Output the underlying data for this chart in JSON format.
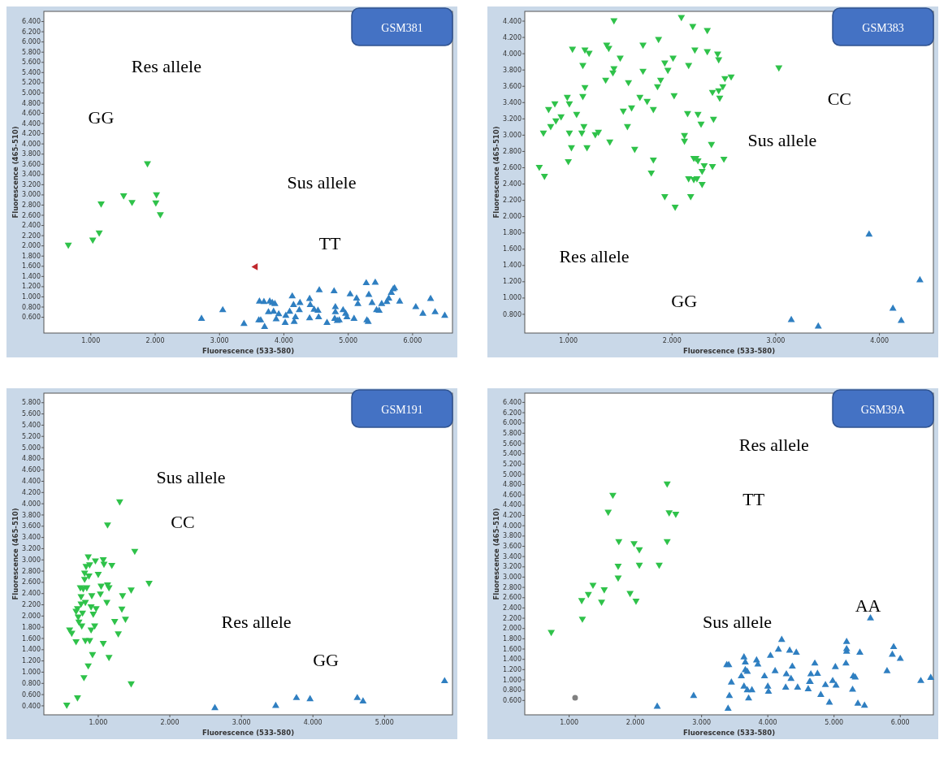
{
  "chart_data": [
    {
      "type": "scatter",
      "title": "GSM381",
      "xlabel": "Fluorescence (533-580)",
      "ylabel": "Fluorescence (465-510)",
      "xlim": [
        0.27,
        6.62
      ],
      "ylim": [
        0.29,
        6.6
      ],
      "xticks": [
        {
          "value": 1,
          "label": "1.000"
        },
        {
          "value": 2,
          "label": "2.000"
        },
        {
          "value": 3,
          "label": "3.000"
        },
        {
          "value": 4,
          "label": "4.000"
        },
        {
          "value": 5,
          "label": "5.000"
        },
        {
          "value": 6,
          "label": "6.000"
        }
      ],
      "yticks": [
        {
          "value": 0.6,
          "label": "0.600"
        },
        {
          "value": 0.8,
          "label": "0.800"
        },
        {
          "value": 1,
          "label": "1.000"
        },
        {
          "value": 1.2,
          "label": "1.200"
        },
        {
          "value": 1.4,
          "label": "1.400"
        },
        {
          "value": 1.6,
          "label": "1.600"
        },
        {
          "value": 1.8,
          "label": "1.800"
        },
        {
          "value": 2,
          "label": "2.000"
        },
        {
          "value": 2.2,
          "label": "2.200"
        },
        {
          "value": 2.4,
          "label": "2.400"
        },
        {
          "value": 2.6,
          "label": "2.600"
        },
        {
          "value": 2.8,
          "label": "2.800"
        },
        {
          "value": 3,
          "label": "3.000"
        },
        {
          "value": 3.2,
          "label": "3.200"
        },
        {
          "value": 3.4,
          "label": "3.400"
        },
        {
          "value": 3.6,
          "label": "3.600"
        },
        {
          "value": 3.8,
          "label": "3.800"
        },
        {
          "value": 4,
          "label": "4.000"
        },
        {
          "value": 4.2,
          "label": "4.200"
        },
        {
          "value": 4.4,
          "label": "4.400"
        },
        {
          "value": 4.6,
          "label": "4.600"
        },
        {
          "value": 4.8,
          "label": "4.800"
        },
        {
          "value": 5,
          "label": "5.000"
        },
        {
          "value": 5.2,
          "label": "5.200"
        },
        {
          "value": 5.4,
          "label": "5.400"
        },
        {
          "value": 5.6,
          "label": "5.600"
        },
        {
          "value": 5.8,
          "label": "5.800"
        },
        {
          "value": 6,
          "label": "6.000"
        },
        {
          "value": 6.2,
          "label": "6.200"
        },
        {
          "value": 6.4,
          "label": "6.400"
        }
      ],
      "annotations": [
        "Res allele",
        "GG",
        "Sus allele",
        "TT"
      ],
      "series": [
        {
          "color": "#2fc24a",
          "marker": "triangle-down",
          "x": [
            0.65,
            1.03,
            1.13,
            1.16,
            1.51,
            1.64,
            1.88,
            2.02,
            2.01,
            2.08
          ],
          "values": [
            2.02,
            2.12,
            2.26,
            2.83,
            2.99,
            2.86,
            3.62,
            3.01,
            2.85,
            2.62
          ]
        },
        {
          "color": "#c0282d",
          "marker": "triangle-left",
          "x": [
            3.56
          ],
          "values": [
            1.59
          ]
        },
        {
          "color": "#2f7fc1",
          "marker": "triangle",
          "x": [
            2.72,
            3.05,
            3.38,
            3.62,
            3.69,
            3.78,
            3.82,
            3.86,
            3.61,
            3.64,
            3.7,
            3.76,
            3.84,
            3.88,
            3.92,
            4.02,
            4.03,
            4.09,
            4.13,
            4.15,
            4.16,
            4.18,
            4.24,
            4.25,
            4.4,
            4.41,
            4.4,
            4.47,
            4.53,
            4.54,
            4.55,
            4.67,
            4.78,
            4.8,
            4.8,
            4.79,
            4.83,
            4.86,
            4.92,
            4.96,
            4.98,
            5.03,
            5.09,
            5.13,
            5.15,
            5.28,
            5.29,
            5.31,
            5.32,
            5.37,
            5.42,
            5.44,
            5.48,
            5.52,
            5.6,
            5.63,
            5.67,
            5.7,
            5.72,
            5.8,
            6.05,
            6.16,
            6.28,
            6.35,
            6.5
          ],
          "values": [
            0.57,
            0.74,
            0.47,
            0.91,
            0.9,
            0.91,
            0.88,
            0.86,
            0.54,
            0.54,
            0.41,
            0.7,
            0.71,
            0.56,
            0.66,
            0.49,
            0.63,
            0.71,
            1.01,
            0.84,
            0.51,
            0.6,
            0.74,
            0.88,
            0.96,
            0.84,
            0.58,
            0.75,
            0.73,
            0.6,
            1.13,
            0.49,
            1.11,
            0.8,
            0.7,
            0.57,
            0.53,
            0.54,
            0.74,
            0.67,
            0.6,
            1.05,
            0.57,
            0.97,
            0.86,
            1.27,
            0.54,
            0.51,
            1.04,
            0.88,
            1.28,
            0.74,
            0.73,
            0.86,
            0.9,
            0.97,
            1.08,
            1.15,
            1.17,
            0.91,
            0.8,
            0.67,
            0.96,
            0.7,
            0.63
          ]
        }
      ]
    },
    {
      "type": "scatter",
      "title": "GSM383",
      "xlabel": "Fluorescence (533-580)",
      "ylabel": "Fluorescence (465-510)",
      "xlim": [
        0.58,
        4.52
      ],
      "ylim": [
        0.57,
        4.52
      ],
      "xticks": [
        {
          "value": 1,
          "label": "1.000"
        },
        {
          "value": 2,
          "label": "2.000"
        },
        {
          "value": 3,
          "label": "3.000"
        },
        {
          "value": 4,
          "label": "4.000"
        }
      ],
      "yticks": [
        {
          "value": 0.8,
          "label": "0.800"
        },
        {
          "value": 1,
          "label": "1.000"
        },
        {
          "value": 1.2,
          "label": "1.200"
        },
        {
          "value": 1.4,
          "label": "1.400"
        },
        {
          "value": 1.6,
          "label": "1.600"
        },
        {
          "value": 1.8,
          "label": "1.800"
        },
        {
          "value": 2,
          "label": "2.000"
        },
        {
          "value": 2.2,
          "label": "2.200"
        },
        {
          "value": 2.4,
          "label": "2.400"
        },
        {
          "value": 2.6,
          "label": "2.600"
        },
        {
          "value": 2.8,
          "label": "2.800"
        },
        {
          "value": 3,
          "label": "3.000"
        },
        {
          "value": 3.2,
          "label": "3.200"
        },
        {
          "value": 3.4,
          "label": "3.400"
        },
        {
          "value": 3.6,
          "label": "3.600"
        },
        {
          "value": 3.8,
          "label": "3.800"
        },
        {
          "value": 4,
          "label": "4.000"
        },
        {
          "value": 4.2,
          "label": "4.200"
        },
        {
          "value": 4.4,
          "label": "4.400"
        }
      ],
      "annotations": [
        "CC",
        "Sus allele",
        "Res allele",
        "GG"
      ],
      "series": [
        {
          "color": "#2fc24a",
          "marker": "triangle-down",
          "x": [
            0.72,
            0.77,
            0.76,
            0.81,
            0.83,
            0.87,
            0.88,
            0.93,
            0.99,
            1.01,
            1.01,
            1.0,
            1.03,
            1.04,
            1.08,
            1.14,
            1.14,
            1.16,
            1.15,
            1.13,
            1.16,
            1.18,
            1.2,
            1.26,
            1.29,
            1.36,
            1.37,
            1.39,
            1.4,
            1.43,
            1.44,
            1.44,
            1.5,
            1.53,
            1.57,
            1.58,
            1.61,
            1.64,
            1.69,
            1.72,
            1.72,
            1.76,
            1.8,
            1.82,
            1.82,
            1.86,
            1.87,
            1.89,
            1.93,
            1.93,
            1.96,
            2.01,
            2.02,
            2.03,
            2.09,
            2.12,
            2.12,
            2.15,
            2.16,
            2.18,
            2.16,
            2.2,
            2.21,
            2.21,
            2.22,
            2.23,
            2.24,
            2.25,
            2.25,
            2.28,
            2.29,
            2.29,
            2.31,
            2.34,
            2.34,
            2.39,
            2.38,
            2.39,
            2.4,
            2.44,
            2.45,
            2.45,
            2.46,
            2.49,
            2.5,
            2.51,
            2.57,
            3.03
          ],
          "values": [
            2.61,
            2.5,
            3.03,
            3.32,
            3.11,
            3.39,
            3.18,
            3.23,
            3.47,
            3.39,
            3.03,
            2.68,
            2.85,
            4.06,
            3.26,
            3.86,
            3.48,
            3.59,
            3.11,
            3.03,
            4.05,
            2.85,
            4.01,
            3.01,
            3.04,
            3.68,
            4.11,
            4.07,
            2.92,
            3.77,
            3.82,
            4.41,
            3.95,
            3.3,
            3.11,
            3.65,
            3.34,
            2.83,
            3.47,
            3.79,
            4.11,
            3.42,
            2.54,
            2.7,
            3.32,
            3.6,
            4.18,
            3.68,
            2.25,
            3.89,
            3.8,
            3.95,
            3.49,
            2.12,
            4.45,
            3.0,
            2.93,
            3.27,
            3.86,
            2.25,
            2.47,
            4.34,
            2.46,
            2.72,
            4.05,
            2.72,
            2.47,
            2.69,
            3.26,
            3.14,
            2.56,
            2.4,
            2.63,
            4.29,
            4.03,
            2.62,
            2.89,
            3.53,
            3.2,
            4.0,
            3.93,
            3.55,
            3.46,
            3.6,
            2.71,
            3.7,
            3.72,
            3.83
          ]
        },
        {
          "color": "#2f7fc1",
          "marker": "triangle",
          "x": [
            3.15,
            3.41,
            3.9,
            4.13,
            4.21,
            4.39
          ],
          "values": [
            0.73,
            0.65,
            1.78,
            0.87,
            0.72,
            1.22
          ]
        }
      ]
    },
    {
      "type": "scatter",
      "title": "GSM191",
      "xlabel": "Fluorescence (533-580)",
      "ylabel": "Fluorescence (465-510)",
      "xlim": [
        0.24,
        5.95
      ],
      "ylim": [
        0.24,
        5.97
      ],
      "xticks": [
        {
          "value": 1,
          "label": "1.000"
        },
        {
          "value": 2,
          "label": "2.000"
        },
        {
          "value": 3,
          "label": "3.000"
        },
        {
          "value": 4,
          "label": "4.000"
        },
        {
          "value": 5,
          "label": "5.000"
        }
      ],
      "yticks": [
        {
          "value": 0.4,
          "label": "0.400"
        },
        {
          "value": 0.6,
          "label": "0.600"
        },
        {
          "value": 0.8,
          "label": "0.800"
        },
        {
          "value": 1,
          "label": "1.000"
        },
        {
          "value": 1.2,
          "label": "1.200"
        },
        {
          "value": 1.4,
          "label": "1.400"
        },
        {
          "value": 1.6,
          "label": "1.600"
        },
        {
          "value": 1.8,
          "label": "1.800"
        },
        {
          "value": 2,
          "label": "2.000"
        },
        {
          "value": 2.2,
          "label": "2.200"
        },
        {
          "value": 2.4,
          "label": "2.400"
        },
        {
          "value": 2.6,
          "label": "2.600"
        },
        {
          "value": 2.8,
          "label": "2.800"
        },
        {
          "value": 3,
          "label": "3.000"
        },
        {
          "value": 3.2,
          "label": "3.200"
        },
        {
          "value": 3.4,
          "label": "3.400"
        },
        {
          "value": 3.6,
          "label": "3.600"
        },
        {
          "value": 3.8,
          "label": "3.800"
        },
        {
          "value": 4,
          "label": "4.000"
        },
        {
          "value": 4.2,
          "label": "4.200"
        },
        {
          "value": 4.4,
          "label": "4.400"
        },
        {
          "value": 4.6,
          "label": "4.600"
        },
        {
          "value": 4.8,
          "label": "4.800"
        },
        {
          "value": 5,
          "label": "5.000"
        },
        {
          "value": 5.2,
          "label": "5.200"
        },
        {
          "value": 5.4,
          "label": "5.400"
        },
        {
          "value": 5.6,
          "label": "5.600"
        },
        {
          "value": 5.8,
          "label": "5.800"
        }
      ],
      "annotations": [
        "Sus allele",
        "CC",
        "Res allele",
        "GG"
      ],
      "series": [
        {
          "color": "#2fc24a",
          "marker": "triangle-down",
          "x": [
            0.56,
            0.71,
            0.6,
            0.63,
            0.69,
            0.69,
            0.71,
            0.72,
            0.73,
            0.75,
            0.76,
            0.76,
            0.77,
            0.78,
            0.79,
            0.8,
            0.81,
            0.81,
            0.82,
            0.82,
            0.83,
            0.84,
            0.86,
            0.86,
            0.87,
            0.88,
            0.88,
            0.9,
            0.9,
            0.91,
            0.92,
            0.93,
            0.95,
            0.96,
            0.97,
            1.0,
            1.03,
            1.04,
            1.07,
            1.07,
            1.08,
            1.12,
            1.13,
            1.13,
            1.15,
            1.15,
            1.19,
            1.23,
            1.28,
            1.3,
            1.33,
            1.34,
            1.38,
            1.46,
            1.46,
            1.51,
            1.71
          ],
          "values": [
            0.42,
            0.55,
            1.76,
            1.7,
            1.55,
            2.09,
            2.14,
            1.99,
            1.9,
            2.51,
            2.35,
            2.22,
            1.83,
            2.06,
            2.49,
            0.91,
            2.77,
            2.66,
            2.25,
            1.57,
            2.89,
            2.51,
            1.12,
            3.06,
            2.72,
            1.57,
            2.92,
            1.76,
            2.17,
            2.37,
            1.32,
            2.04,
            1.83,
            2.99,
            2.14,
            2.75,
            2.4,
            2.54,
            1.52,
            3.01,
            2.93,
            2.25,
            3.63,
            2.56,
            2.51,
            1.27,
            2.91,
            1.91,
            1.69,
            4.04,
            2.13,
            2.37,
            1.95,
            2.47,
            0.8,
            3.16,
            2.59
          ]
        },
        {
          "color": "#2f7fc1",
          "marker": "triangle",
          "x": [
            2.63,
            3.48,
            3.77,
            3.96,
            4.62,
            4.7,
            5.84
          ],
          "values": [
            0.36,
            0.4,
            0.54,
            0.52,
            0.54,
            0.48,
            0.84
          ]
        }
      ]
    },
    {
      "type": "scatter",
      "title": "GSM39A",
      "xlabel": "Fluorescence (533-580)",
      "ylabel": "Fluorescence (465-510)",
      "xlim": [
        0.33,
        6.5
      ],
      "ylim": [
        0.32,
        6.58
      ],
      "xticks": [
        {
          "value": 1,
          "label": "1.000"
        },
        {
          "value": 2,
          "label": "2.000"
        },
        {
          "value": 3,
          "label": "3.000"
        },
        {
          "value": 4,
          "label": "4.000"
        },
        {
          "value": 5,
          "label": "5.000"
        },
        {
          "value": 6,
          "label": "6.000"
        }
      ],
      "yticks": [
        {
          "value": 0.6,
          "label": "0.600"
        },
        {
          "value": 0.8,
          "label": "0.800"
        },
        {
          "value": 1,
          "label": "1.000"
        },
        {
          "value": 1.2,
          "label": "1.200"
        },
        {
          "value": 1.4,
          "label": "1.400"
        },
        {
          "value": 1.6,
          "label": "1.600"
        },
        {
          "value": 1.8,
          "label": "1.800"
        },
        {
          "value": 2,
          "label": "2.000"
        },
        {
          "value": 2.2,
          "label": "2.200"
        },
        {
          "value": 2.4,
          "label": "2.400"
        },
        {
          "value": 2.6,
          "label": "2.600"
        },
        {
          "value": 2.8,
          "label": "2.800"
        },
        {
          "value": 3,
          "label": "3.000"
        },
        {
          "value": 3.2,
          "label": "3.200"
        },
        {
          "value": 3.4,
          "label": "3.400"
        },
        {
          "value": 3.6,
          "label": "3.600"
        },
        {
          "value": 3.8,
          "label": "3.800"
        },
        {
          "value": 4,
          "label": "4.000"
        },
        {
          "value": 4.2,
          "label": "4.200"
        },
        {
          "value": 4.4,
          "label": "4.400"
        },
        {
          "value": 4.6,
          "label": "4.600"
        },
        {
          "value": 4.8,
          "label": "4.800"
        },
        {
          "value": 5,
          "label": "5.000"
        },
        {
          "value": 5.2,
          "label": "5.200"
        },
        {
          "value": 5.4,
          "label": "5.400"
        },
        {
          "value": 5.6,
          "label": "5.600"
        },
        {
          "value": 5.8,
          "label": "5.800"
        },
        {
          "value": 6,
          "label": "6.000"
        },
        {
          "value": 6.2,
          "label": "6.200"
        },
        {
          "value": 6.4,
          "label": "6.400"
        }
      ],
      "annotations": [
        "Res allele",
        "TT",
        "Sus allele",
        "AA"
      ],
      "series": [
        {
          "color": "#2fc24a",
          "marker": "triangle-down",
          "x": [
            0.73,
            1.2,
            1.19,
            1.29,
            1.36,
            1.49,
            1.53,
            1.59,
            1.66,
            1.74,
            1.74,
            1.75,
            1.92,
            1.98,
            2.01,
            2.06,
            2.06,
            2.36,
            2.48,
            2.48,
            2.51,
            2.61
          ],
          "values": [
            1.93,
            2.19,
            2.55,
            2.67,
            2.85,
            2.52,
            2.76,
            4.27,
            4.6,
            2.99,
            3.22,
            3.7,
            2.69,
            3.66,
            2.54,
            3.54,
            3.24,
            3.24,
            3.7,
            4.82,
            4.26,
            4.23
          ]
        },
        {
          "color": "#808080",
          "marker": "circle",
          "x": [
            1.09
          ],
          "values": [
            0.65
          ]
        },
        {
          "color": "#2f7fc1",
          "marker": "triangle",
          "x": [
            2.33,
            2.88,
            3.38,
            3.41,
            3.4,
            3.42,
            3.45,
            3.6,
            3.64,
            3.64,
            3.66,
            3.66,
            3.69,
            3.69,
            3.71,
            3.76,
            3.83,
            3.85,
            3.95,
            4.0,
            4.01,
            4.04,
            4.11,
            4.16,
            4.21,
            4.27,
            4.28,
            4.33,
            4.35,
            4.37,
            4.43,
            4.45,
            4.61,
            4.63,
            4.65,
            4.64,
            4.71,
            4.75,
            4.8,
            4.87,
            4.93,
            4.98,
            5.02,
            5.03,
            5.18,
            5.19,
            5.19,
            5.19,
            5.28,
            5.29,
            5.32,
            5.36,
            5.39,
            5.46,
            5.55,
            5.8,
            5.88,
            5.9,
            6.0,
            6.31,
            6.46
          ],
          "values": [
            0.48,
            0.69,
            1.29,
            1.29,
            0.44,
            0.69,
            0.95,
            1.07,
            0.87,
            1.44,
            1.34,
            1.19,
            1.16,
            0.8,
            0.64,
            0.8,
            1.38,
            1.3,
            1.07,
            0.87,
            0.77,
            1.47,
            1.17,
            1.59,
            1.78,
            0.85,
            1.11,
            1.57,
            1.02,
            1.26,
            1.53,
            0.85,
            0.82,
            0.96,
            1.11,
            0.96,
            1.32,
            1.12,
            0.71,
            0.9,
            0.56,
            0.98,
            1.25,
            0.89,
            1.32,
            1.55,
            1.6,
            1.74,
            0.81,
            1.07,
            1.05,
            0.54,
            1.53,
            0.5,
            2.2,
            1.17,
            1.49,
            1.64,
            1.41,
            0.98,
            1.04
          ]
        }
      ]
    }
  ]
}
